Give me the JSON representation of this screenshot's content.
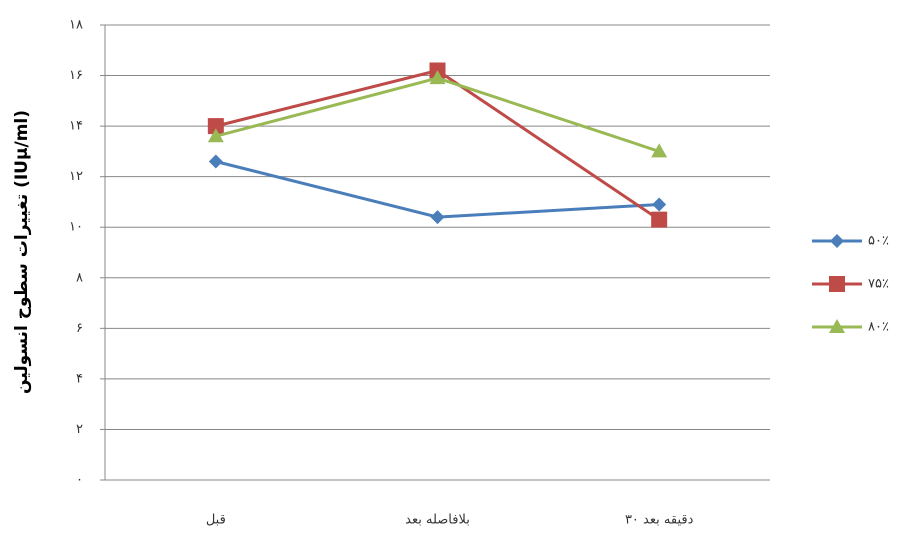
{
  "chart_data": {
    "type": "line",
    "y_label": "تغییرات سطوح انسولین (IUμ/ml)",
    "categories": [
      "قبل",
      "بلافاصله بعد",
      "۳۰ دقیقه بعد"
    ],
    "series": [
      {
        "name": "۵۰٪",
        "color": "#4a7ebb",
        "marker": "diamond",
        "values": [
          12.6,
          10.4,
          10.9
        ]
      },
      {
        "name": "۷۵٪",
        "color": "#be4b48",
        "marker": "square",
        "values": [
          14.0,
          16.2,
          10.3
        ]
      },
      {
        "name": "۸۰٪",
        "color": "#98b954",
        "marker": "triangle",
        "values": [
          13.6,
          15.9,
          13.0
        ]
      }
    ],
    "ylim": [
      0,
      18
    ],
    "yticks": [
      {
        "value": 0,
        "label": "۰"
      },
      {
        "value": 2,
        "label": "۲"
      },
      {
        "value": 4,
        "label": "۴"
      },
      {
        "value": 6,
        "label": "۶"
      },
      {
        "value": 8,
        "label": "۸"
      },
      {
        "value": 10,
        "label": "۱۰"
      },
      {
        "value": 12,
        "label": "۱۲"
      },
      {
        "value": 14,
        "label": "۱۴"
      },
      {
        "value": 16,
        "label": "۱۶"
      },
      {
        "value": 18,
        "label": "۱۸"
      }
    ],
    "grid": true,
    "legend": "right"
  }
}
